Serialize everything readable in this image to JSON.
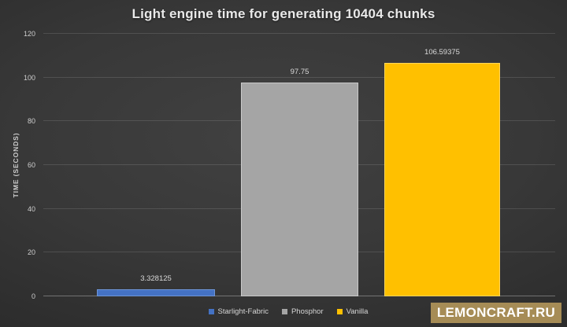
{
  "chart_data": {
    "type": "bar",
    "title": "Light engine time for generating 10404 chunks",
    "categories": [
      "Starlight-Fabric",
      "Phosphor",
      "Vanilla"
    ],
    "values": [
      3.328125,
      97.75,
      106.59375
    ],
    "value_labels": [
      "3.328125",
      "97.75",
      "106.59375"
    ],
    "colors": [
      "#4472C4",
      "#A5A5A5",
      "#FFC000"
    ],
    "border_colors": [
      "#6E95D7",
      "#C9C9C9",
      "#FFD65C"
    ],
    "xlabel": "",
    "ylabel": "TIME (SECONDS)",
    "ylim": [
      0,
      120
    ],
    "yticks": [
      0,
      20,
      40,
      60,
      80,
      100,
      120
    ],
    "grid": "on",
    "legend_position": "bottom",
    "legend": [
      "Starlight-Fabric",
      "Phosphor",
      "Vanilla"
    ]
  },
  "watermark": {
    "text": "LEMONCRAFT.RU",
    "background": "#A68C56",
    "text_color": "#FFFFFF"
  }
}
